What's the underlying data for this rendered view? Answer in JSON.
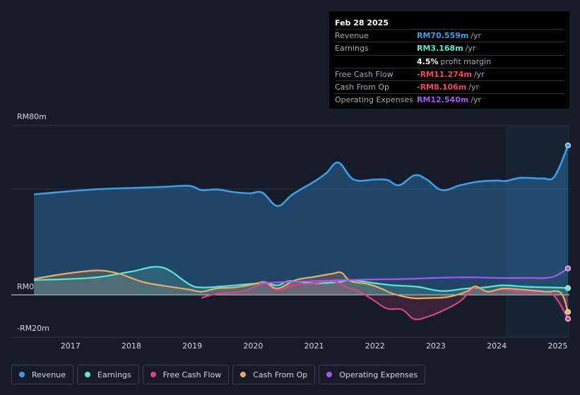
{
  "tooltip": {
    "date": "Feb 28 2025",
    "rows": [
      {
        "label": "Revenue",
        "value": "RM70.559m",
        "unit": "/yr",
        "color": "#3b9ee8"
      },
      {
        "label": "Earnings",
        "value": "RM3.168m",
        "unit": "/yr",
        "color": "#5ee6d0"
      },
      {
        "label": "",
        "value": "4.5%",
        "unit": "profit margin",
        "color": "#ffffff"
      },
      {
        "label": "Free Cash Flow",
        "value": "-RM11.274m",
        "unit": "/yr",
        "color": "#f0475a"
      },
      {
        "label": "Cash From Op",
        "value": "-RM8.106m",
        "unit": "/yr",
        "color": "#f0475a"
      },
      {
        "label": "Operating Expenses",
        "value": "RM12.540m",
        "unit": "/yr",
        "color": "#a855f7"
      }
    ]
  },
  "legend": [
    {
      "label": "Revenue",
      "color": "#3b9ee8"
    },
    {
      "label": "Earnings",
      "color": "#5ee6d0"
    },
    {
      "label": "Free Cash Flow",
      "color": "#d9467f"
    },
    {
      "label": "Cash From Op",
      "color": "#e8ad64"
    },
    {
      "label": "Operating Expenses",
      "color": "#a855f7"
    }
  ],
  "chart_data": {
    "type": "line",
    "title": "",
    "y_tick_labels": [
      {
        "value": 80,
        "label": "RM80m"
      },
      {
        "value": 0,
        "label": "RM0"
      },
      {
        "value": -20,
        "label": "-RM20m"
      }
    ],
    "ylim": [
      -24,
      80
    ],
    "xlim": [
      2016.4,
      2025.17
    ],
    "x_tick_labels": [
      "2017",
      "2018",
      "2019",
      "2020",
      "2021",
      "2022",
      "2023",
      "2024",
      "2025"
    ],
    "x_tick_values": [
      2017,
      2018,
      2019,
      2020,
      2021,
      2022,
      2023,
      2024,
      2025
    ],
    "forecast_start": 2024.15,
    "series": [
      {
        "name": "Revenue",
        "color": "#3b9ee8",
        "fill": true,
        "x": [
          2016.4,
          2017.0,
          2017.5,
          2018.0,
          2018.5,
          2018.95,
          2019.15,
          2019.4,
          2019.7,
          2019.95,
          2020.15,
          2020.4,
          2020.65,
          2021.0,
          2021.2,
          2021.4,
          2021.65,
          2022.0,
          2022.2,
          2022.4,
          2022.65,
          2022.85,
          2023.1,
          2023.4,
          2023.7,
          2024.0,
          2024.15,
          2024.4,
          2024.75,
          2024.95,
          2025.17
        ],
        "values": [
          47.5,
          49.0,
          50.0,
          50.5,
          51.0,
          51.5,
          49.5,
          49.8,
          48.5,
          48.0,
          48.3,
          42.0,
          47.5,
          53.5,
          57.5,
          62.5,
          54.5,
          54.5,
          54.3,
          51.8,
          56.5,
          54.5,
          49.5,
          51.8,
          53.5,
          54.0,
          53.8,
          55.3,
          55.0,
          56.0,
          70.6
        ]
      },
      {
        "name": "Earnings",
        "color": "#5ee6d0",
        "fill": true,
        "x": [
          2016.4,
          2017.0,
          2017.5,
          2018.0,
          2018.5,
          2018.95,
          2019.15,
          2019.5,
          2020.15,
          2020.4,
          2020.6,
          2021.0,
          2021.4,
          2021.6,
          2022.0,
          2022.3,
          2022.7,
          2023.1,
          2023.5,
          2023.8,
          2024.1,
          2024.5,
          2024.9,
          2025.17
        ],
        "values": [
          7.0,
          7.5,
          8.5,
          11.0,
          13.0,
          5.0,
          3.5,
          4.0,
          5.5,
          4.5,
          6.5,
          5.5,
          6.0,
          7.0,
          5.5,
          4.5,
          3.8,
          1.8,
          3.0,
          3.5,
          4.5,
          3.8,
          3.5,
          3.2
        ]
      },
      {
        "name": "Free Cash Flow",
        "color": "#d9467f",
        "fill": true,
        "x": [
          2019.15,
          2019.4,
          2019.8,
          2020.0,
          2020.2,
          2020.4,
          2020.65,
          2021.0,
          2021.3,
          2021.55,
          2021.75,
          2022.0,
          2022.2,
          2022.45,
          2022.65,
          2022.9,
          2023.15,
          2023.4,
          2023.65,
          2023.85,
          2024.1,
          2024.5,
          2024.9,
          2025.17
        ],
        "values": [
          -1.5,
          0.5,
          1.5,
          3.5,
          5.5,
          2.0,
          4.5,
          5.5,
          6.5,
          3.5,
          1.5,
          -3.0,
          -6.5,
          -7.0,
          -11.5,
          -10.0,
          -7.0,
          -3.0,
          3.5,
          1.5,
          2.5,
          1.0,
          0.5,
          -11.3
        ]
      },
      {
        "name": "Cash From Op",
        "color": "#e8ad64",
        "fill": true,
        "x": [
          2016.4,
          2016.8,
          2017.2,
          2017.5,
          2017.8,
          2018.2,
          2018.6,
          2018.95,
          2019.15,
          2019.4,
          2019.7,
          2020.0,
          2020.2,
          2020.4,
          2020.7,
          2021.0,
          2021.3,
          2021.45,
          2021.6,
          2021.9,
          2022.1,
          2022.3,
          2022.6,
          2022.9,
          2023.2,
          2023.5,
          2023.65,
          2023.85,
          2024.1,
          2024.4,
          2024.8,
          2025.05,
          2025.17
        ],
        "values": [
          7.5,
          9.5,
          11.0,
          11.5,
          10.0,
          6.0,
          4.0,
          2.5,
          1.5,
          3.0,
          3.5,
          5.0,
          6.0,
          3.0,
          7.0,
          8.5,
          10.0,
          10.5,
          6.5,
          5.0,
          3.0,
          0.5,
          -1.5,
          -1.5,
          -1.0,
          1.5,
          4.0,
          1.5,
          3.0,
          2.5,
          1.5,
          1.0,
          -8.1
        ]
      },
      {
        "name": "Operating Expenses",
        "color": "#a855f7",
        "fill": false,
        "x": [
          2020.1,
          2020.5,
          2021.0,
          2021.5,
          2022.0,
          2022.5,
          2023.0,
          2023.5,
          2024.0,
          2024.5,
          2024.9,
          2025.17
        ],
        "values": [
          5.5,
          6.0,
          6.5,
          7.0,
          7.3,
          7.5,
          8.0,
          8.3,
          8.0,
          8.0,
          8.3,
          12.5
        ]
      }
    ]
  }
}
